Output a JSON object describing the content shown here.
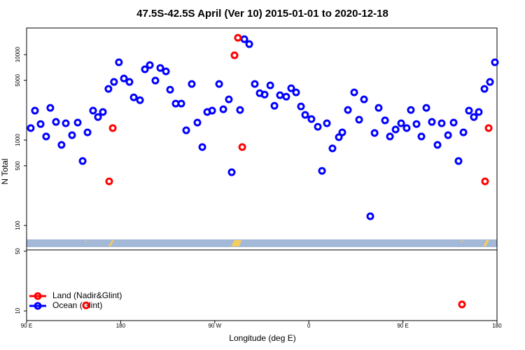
{
  "chart_data": {
    "type": "scatter",
    "title": "47.5S-42.5S April (Ver 10)   2015-01-01 to 2020-12-18",
    "x_label": "Longitude (deg E)",
    "y_label": "N Total",
    "xlim": [
      90,
      540
    ],
    "xticks": [
      {
        "value": 90,
        "label": "90 E"
      },
      180,
      {
        "value": 270,
        "label": "90 W"
      },
      {
        "value": 360,
        "label": "0"
      },
      {
        "value": 450,
        "label": "90 E"
      },
      {
        "value": 540,
        "label": "180"
      }
    ],
    "ylim": [
      7.7,
      20500
    ],
    "yticks": [
      10,
      50,
      100,
      500,
      1000,
      5000,
      10000
    ],
    "log_y": true,
    "legend": "lower left",
    "series": [
      {
        "name": "Land (Nadir&Glint)",
        "color": "#ff0000",
        "x": [
          146.9,
          169.0,
          172.4,
          288.9,
          292.2,
          296.3,
          506.5,
          528.6,
          532.0
        ],
        "values": [
          11.6,
          328,
          1380,
          9820,
          15730,
          828,
          11.9,
          328,
          1380
        ]
      },
      {
        "name": "Ocean (Glint)",
        "color": "#0000ff",
        "x": [
          94.0,
          98.0,
          103.4,
          108.7,
          112.7,
          118.1,
          123.4,
          127.5,
          133.5,
          138.9,
          143.6,
          148.3,
          153.6,
          158.3,
          163.0,
          168.3,
          173.6,
          178.3,
          183.1,
          188.4,
          192.5,
          198.5,
          203.2,
          207.9,
          213.2,
          217.9,
          223.3,
          227.3,
          232.6,
          238.0,
          242.7,
          248.0,
          253.4,
          258.1,
          262.8,
          267.5,
          274.2,
          278.2,
          283.5,
          286.2,
          298.3,
          303.0,
          294.2,
          308.3,
          313.0,
          317.7,
          323.1,
          327.1,
          332.4,
          338.4,
          343.1,
          347.8,
          352.5,
          356.5,
          362.5,
          368.6,
          372.6,
          377.3,
          382.6,
          388.7,
          392.0,
          397.4,
          403.4,
          408.1,
          412.8,
          418.8,
          422.9,
          426.8,
          432.9,
          437.6,
          443.0,
          448.3,
          453.6,
          457.6,
          463.0,
          467.7,
          472.4,
          477.7,
          483.1,
          487.1,
          493.2,
          498.5,
          503.2,
          507.9,
          513.2,
          517.9,
          522.6,
          528.0,
          533.3,
          538.0
        ],
        "values": [
          1380,
          2210,
          1540,
          1100,
          2380,
          1630,
          877,
          1570,
          1140,
          1600,
          568,
          1230,
          2210,
          1860,
          2130,
          3970,
          4790,
          8130,
          5260,
          4790,
          3160,
          2930,
          6730,
          7540,
          4970,
          6980,
          6360,
          3890,
          2670,
          2670,
          1300,
          4530,
          1600,
          828,
          2130,
          2210,
          4530,
          2290,
          2990,
          420,
          15150,
          13270,
          2250,
          4530,
          3540,
          3410,
          4360,
          2520,
          3350,
          3220,
          4040,
          3610,
          2470,
          1970,
          1760,
          1430,
          436,
          1570,
          798,
          1080,
          1230,
          2250,
          3610,
          1730,
          2990,
          128,
          1210,
          2380,
          1700,
          1100,
          1330,
          1570,
          1380,
          2250,
          1540,
          1100,
          2380,
          1630,
          877,
          1570,
          1140,
          1600,
          568,
          1230,
          2210,
          1860,
          2130,
          3970,
          4790,
          8130
        ]
      }
    ]
  }
}
